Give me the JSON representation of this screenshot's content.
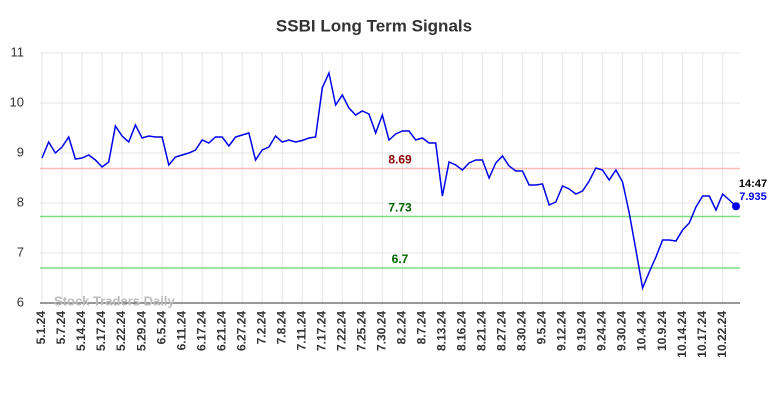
{
  "chart_data": {
    "type": "line",
    "title": "SSBI Long Term Signals",
    "categories": [
      "5.1.24",
      null,
      null,
      "5.7.24",
      null,
      null,
      "5.14.24",
      null,
      null,
      "5.17.24",
      null,
      null,
      "5.22.24",
      null,
      null,
      "5.29.24",
      null,
      null,
      "6.5.24",
      null,
      null,
      "6.11.24",
      null,
      null,
      "6.17.24",
      null,
      null,
      "6.21.24",
      null,
      null,
      "6.27.24",
      null,
      null,
      "7.2.24",
      null,
      null,
      "7.8.24",
      null,
      null,
      "7.11.24",
      null,
      null,
      "7.17.24",
      null,
      null,
      "7.22.24",
      null,
      null,
      "7.25.24",
      null,
      null,
      "7.30.24",
      null,
      null,
      "8.2.24",
      null,
      null,
      "8.7.24",
      null,
      null,
      "8.13.24",
      null,
      null,
      "8.16.24",
      null,
      null,
      "8.21.24",
      null,
      null,
      "8.27.24",
      null,
      null,
      "8.30.24",
      null,
      null,
      "9.5.24",
      null,
      null,
      "9.12.24",
      null,
      null,
      "9.19.24",
      null,
      null,
      "9.24.24",
      null,
      null,
      "9.30.24",
      null,
      null,
      "10.4.24",
      null,
      null,
      "10.9.24",
      null,
      null,
      "10.14.24",
      null,
      null,
      "10.17.24",
      null,
      null,
      "10.22.24",
      null,
      null
    ],
    "values": [
      8.9,
      9.22,
      9.0,
      9.12,
      9.32,
      8.88,
      8.9,
      8.96,
      8.86,
      8.72,
      8.82,
      9.54,
      9.34,
      9.22,
      9.56,
      9.3,
      9.34,
      9.32,
      9.32,
      8.76,
      8.92,
      8.96,
      9.0,
      9.06,
      9.26,
      9.2,
      9.32,
      9.32,
      9.14,
      9.32,
      9.36,
      9.4,
      8.86,
      9.06,
      9.12,
      9.34,
      9.22,
      9.26,
      9.22,
      9.25,
      9.3,
      9.32,
      10.3,
      10.6,
      9.96,
      10.16,
      9.9,
      9.76,
      9.84,
      9.78,
      9.4,
      9.76,
      9.26,
      9.38,
      9.44,
      9.44,
      9.26,
      9.3,
      9.2,
      9.2,
      8.14,
      8.82,
      8.76,
      8.66,
      8.8,
      8.86,
      8.86,
      8.5,
      8.8,
      8.94,
      8.74,
      8.64,
      8.64,
      8.36,
      8.36,
      8.38,
      7.96,
      8.02,
      8.34,
      8.28,
      8.18,
      8.24,
      8.44,
      8.7,
      8.66,
      8.46,
      8.66,
      8.42,
      7.8,
      7.06,
      6.3,
      6.62,
      6.92,
      7.26,
      7.26,
      7.24,
      7.46,
      7.6,
      7.92,
      8.14,
      8.14,
      7.86,
      8.18,
      8.06,
      7.935
    ],
    "color": "#0000ee",
    "ylim": [
      6,
      11
    ],
    "yticks": [
      6,
      7,
      8,
      9,
      10,
      11
    ],
    "grid": true,
    "hlines": [
      {
        "value": 8.69,
        "color": "#ffbbbb",
        "label_color": "#8b0000"
      },
      {
        "value": 7.73,
        "color": "#7ddc7d",
        "label_color": "#006400"
      },
      {
        "value": 6.7,
        "color": "#7ddc7d",
        "label_color": "#006400"
      }
    ],
    "last_time": "14:47",
    "watermark": "Stock Traders Daily"
  }
}
